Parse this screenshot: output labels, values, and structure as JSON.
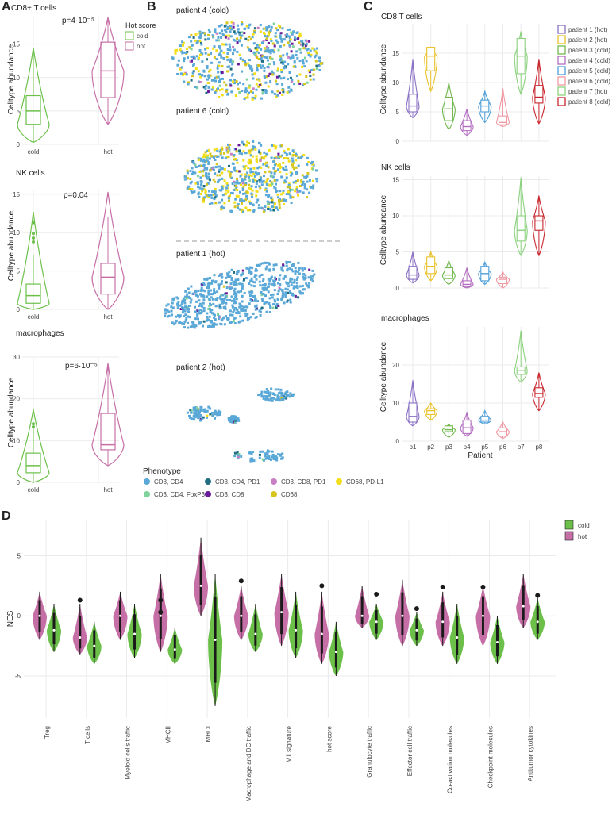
{
  "panels": {
    "A": "A",
    "B": "B",
    "C": "C",
    "D": "D"
  },
  "colors": {
    "cold": "#6cc04a",
    "hot": "#c66fa6"
  },
  "panelA": {
    "ylabel": "Celltype abundance",
    "legend": {
      "title": "Hot score",
      "items": [
        "cold",
        "hot"
      ]
    },
    "plots": [
      {
        "title": "CD8+ T cells",
        "pvalue": "p=4·10⁻⁵",
        "ylim": [
          0,
          19
        ],
        "yticks": [
          0,
          5,
          10,
          15
        ],
        "groups": [
          {
            "name": "cold",
            "min": 0.3,
            "q1": 3,
            "median": 5,
            "q3": 7.3,
            "max": 14.5,
            "outliers": []
          },
          {
            "name": "hot",
            "min": 3,
            "q1": 7,
            "median": 11,
            "q3": 15.3,
            "max": 19,
            "outliers": []
          }
        ]
      },
      {
        "title": "NK cells",
        "pvalue": "p=0.04",
        "ylim": [
          0,
          15.5
        ],
        "yticks": [
          0,
          5,
          10,
          15
        ],
        "groups": [
          {
            "name": "cold",
            "min": 0,
            "q1": 0.8,
            "median": 1.8,
            "q3": 3.3,
            "max": 12.7,
            "outliers": [
              8.8,
              9.3,
              9.9,
              11.3
            ]
          },
          {
            "name": "hot",
            "min": 0,
            "q1": 2,
            "median": 4.2,
            "q3": 6,
            "max": 15.3,
            "outliers": []
          }
        ]
      },
      {
        "title": "macrophages",
        "pvalue": "p=6·10⁻⁵",
        "ylim": [
          0,
          30
        ],
        "yticks": [
          0,
          10,
          20,
          30
        ],
        "groups": [
          {
            "name": "cold",
            "min": 0,
            "q1": 2.3,
            "median": 4,
            "q3": 7,
            "max": 17.5,
            "outliers": [
              13.3,
              14
            ]
          },
          {
            "name": "hot",
            "min": 4,
            "q1": 7.8,
            "median": 9,
            "q3": 16.5,
            "max": 28.5,
            "outliers": []
          }
        ]
      }
    ]
  },
  "panelB": {
    "patients": [
      "patient 4 (cold)",
      "patient 6 (cold)",
      "patient 1 (hot)",
      "patient 2 (hot)"
    ],
    "legend_title": "Phenotype",
    "phenotypes": [
      {
        "label": "CD3, CD4",
        "color": "#5aa8d8"
      },
      {
        "label": "CD3, CD4, FoxP3",
        "color": "#7fd39a"
      },
      {
        "label": "CD3, CD4, PD1",
        "color": "#1f6e82"
      },
      {
        "label": "CD3, CD8",
        "color": "#6a1b9a"
      },
      {
        "label": "CD3, CD8, PD1",
        "color": "#c97fc4"
      },
      {
        "label": "CD68",
        "color": "#d6c51c"
      },
      {
        "label": "CD68, PD-L1",
        "color": "#f2df19"
      }
    ]
  },
  "panelC": {
    "ylabel": "Celltype abundance",
    "xlabel": "Patient",
    "categories": [
      "p1",
      "p2",
      "p3",
      "p4",
      "p5",
      "p6",
      "p7",
      "p8"
    ],
    "legend": [
      {
        "label": "patient 1 (hot)",
        "color": "#8b72c4"
      },
      {
        "label": "patient 2 (hot)",
        "color": "#e9c12a"
      },
      {
        "label": "patient 3 (cold)",
        "color": "#72b84f"
      },
      {
        "label": "patient 4 (cold)",
        "color": "#b36ec1"
      },
      {
        "label": "patient 5 (cold)",
        "color": "#4f9fd8"
      },
      {
        "label": "patient 6 (cold)",
        "color": "#f09aa4"
      },
      {
        "label": "patient 7 (hot)",
        "color": "#8cd27e"
      },
      {
        "label": "patient 8 (cold)",
        "color": "#c8262e"
      }
    ],
    "plots": [
      {
        "title": "CD8 T cells",
        "ylim": [
          0,
          20
        ],
        "yticks": [
          0,
          5,
          10,
          15
        ],
        "stats": [
          [
            4,
            5,
            6,
            8,
            14
          ],
          [
            8.5,
            12,
            14.5,
            16,
            16
          ],
          [
            2,
            3.5,
            5.5,
            7.5,
            10
          ],
          [
            1,
            1.8,
            2.5,
            3.5,
            5.5
          ],
          [
            3.2,
            5,
            6,
            7,
            8.5
          ],
          [
            2.5,
            2.8,
            3.2,
            4.3,
            9
          ],
          [
            8,
            11.5,
            14.5,
            17.5,
            18.7
          ],
          [
            3,
            6.5,
            7.5,
            9.5,
            14
          ]
        ]
      },
      {
        "title": "NK cells",
        "ylim": [
          0,
          15.5
        ],
        "yticks": [
          0,
          5,
          10,
          15
        ],
        "stats": [
          [
            0.7,
            1.2,
            1.8,
            3,
            5
          ],
          [
            1,
            2,
            3,
            4.3,
            5
          ],
          [
            0.5,
            1.3,
            1.8,
            2.8,
            3.8
          ],
          [
            0,
            0.2,
            0.5,
            1,
            2.8
          ],
          [
            0.5,
            1,
            2,
            3,
            3.6
          ],
          [
            0,
            0.6,
            1.2,
            1.5,
            2.2
          ],
          [
            4.5,
            6.5,
            8,
            10,
            15.3
          ],
          [
            4.5,
            8,
            9.3,
            10,
            12.8
          ]
        ]
      },
      {
        "title": "macrophages",
        "ylim": [
          0,
          30
        ],
        "yticks": [
          0,
          10,
          20
        ],
        "stats": [
          [
            4,
            5,
            6.5,
            10,
            16
          ],
          [
            5.5,
            7,
            8,
            8.5,
            10
          ],
          [
            1,
            2.5,
            3,
            4,
            4.5
          ],
          [
            1.3,
            2,
            3.5,
            5.5,
            7.5
          ],
          [
            4.5,
            5,
            5.5,
            6.5,
            8
          ],
          [
            0.7,
            1.3,
            2.5,
            3.5,
            5
          ],
          [
            15.5,
            17.5,
            18.5,
            19.5,
            29
          ],
          [
            8,
            11.5,
            12.5,
            14,
            18
          ]
        ]
      }
    ]
  },
  "panelD": {
    "ylabel": "NES",
    "ylim": [
      -8.5,
      8
    ],
    "yticks": [
      -5,
      0,
      5
    ],
    "legend": [
      "cold",
      "hot"
    ],
    "categories": [
      "Treg",
      "T cells",
      "Myeloid cells traffic",
      "MHCII",
      "MHCI",
      "Macrophage and DC traffic",
      "M1 signature",
      "hot score",
      "Granulocyte traffic",
      "Effector cell traffic",
      "Co-activation molecules",
      "Checkpoint molecules",
      "Antitumor cytokines"
    ],
    "hot": [
      {
        "min": -2,
        "median": 0,
        "max": 2,
        "outliers": []
      },
      {
        "min": -3.2,
        "median": -1.8,
        "max": 1,
        "outliers": [
          1.3
        ]
      },
      {
        "min": -2,
        "median": 0,
        "max": 2,
        "outliers": []
      },
      {
        "min": -3,
        "median": 0,
        "max": 3.5,
        "outliers": [
          1.3,
          0.3
        ]
      },
      {
        "min": 0,
        "median": 2.5,
        "max": 6.5,
        "outliers": []
      },
      {
        "min": -2,
        "median": 0,
        "max": 2.5,
        "outliers": [
          2.9
        ]
      },
      {
        "min": -2.5,
        "median": 0.3,
        "max": 3.5,
        "outliers": []
      },
      {
        "min": -4,
        "median": -1.5,
        "max": 2,
        "outliers": [
          2.5
        ]
      },
      {
        "min": -1,
        "median": 0,
        "max": 2.5,
        "outliers": []
      },
      {
        "min": -2.5,
        "median": 0,
        "max": 3,
        "outliers": []
      },
      {
        "min": -2.5,
        "median": -0.5,
        "max": 2,
        "outliers": [
          2.4
        ]
      },
      {
        "min": -2.5,
        "median": 0,
        "max": 2.5,
        "outliers": [
          2.4
        ]
      },
      {
        "min": -1,
        "median": 0.8,
        "max": 3.5,
        "outliers": []
      }
    ],
    "cold": [
      {
        "min": -3,
        "median": -1.2,
        "max": 1,
        "outliers": []
      },
      {
        "min": -4,
        "median": -2.5,
        "max": -0.5,
        "outliers": []
      },
      {
        "min": -3.5,
        "median": -1.5,
        "max": 1,
        "outliers": []
      },
      {
        "min": -4,
        "median": -2.8,
        "max": -1,
        "outliers": []
      },
      {
        "min": -7.5,
        "median": -2,
        "max": 3.5,
        "outliers": []
      },
      {
        "min": -3,
        "median": -1.5,
        "max": 1,
        "outliers": []
      },
      {
        "min": -3.5,
        "median": -1.2,
        "max": 2,
        "outliers": []
      },
      {
        "min": -5,
        "median": -3,
        "max": -0.5,
        "outliers": []
      },
      {
        "min": -2,
        "median": -0.5,
        "max": 1,
        "outliers": [
          1.8
        ]
      },
      {
        "min": -2.5,
        "median": -1.2,
        "max": 0.3,
        "outliers": [
          0.6
        ]
      },
      {
        "min": -4,
        "median": -1.8,
        "max": 1,
        "outliers": []
      },
      {
        "min": -4,
        "median": -2.2,
        "max": 0,
        "outliers": []
      },
      {
        "min": -2,
        "median": -0.5,
        "max": 1.5,
        "outliers": [
          1.7
        ]
      }
    ]
  }
}
